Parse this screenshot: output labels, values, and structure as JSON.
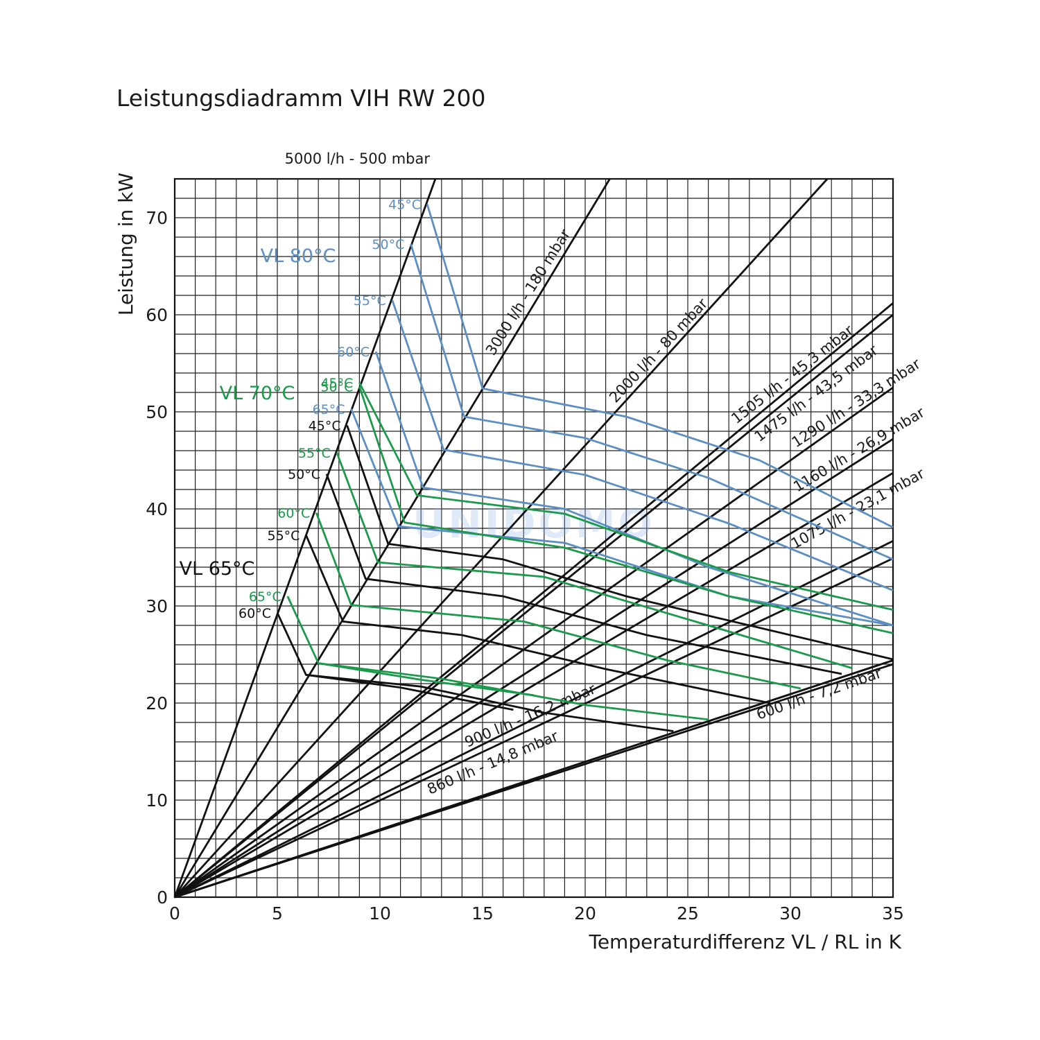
{
  "chart_data": {
    "type": "line",
    "title": "Leistungsdiadramm VIH RW 200",
    "xlabel": "Temperaturdifferenz VL / RL in K",
    "ylabel": "Leistung in kW",
    "xlim": [
      0,
      35
    ],
    "ylim": [
      0,
      74
    ],
    "x_ticks": [
      "0",
      "5",
      "10",
      "15",
      "20",
      "25",
      "30",
      "35"
    ],
    "y_ticks": [
      "0",
      "10",
      "20",
      "30",
      "40",
      "50",
      "60",
      "70"
    ],
    "grid": true,
    "watermark": "UNIDOMO",
    "colors": {
      "vl80": "#5b8ec2",
      "vl70": "#1a9a4a",
      "vl65": "#111111",
      "flow": "#111111"
    },
    "flow_lines": [
      {
        "label": "5000 l/h - 500 mbar",
        "end": [
          12.7,
          74
        ]
      },
      {
        "label": "3000 l/h - 180 mbar",
        "end": [
          21.2,
          74
        ]
      },
      {
        "label": "2000 l/h - 80 mbar",
        "end": [
          31.8,
          74
        ]
      },
      {
        "label": "1505 l/h - 45,3 mbar",
        "end": [
          35,
          61.2
        ]
      },
      {
        "label": "1475 l/h - 43,5 mbar",
        "end": [
          35,
          60.0
        ]
      },
      {
        "label": "1290 l/h - 33,3 mbar",
        "end": [
          35,
          52.5
        ]
      },
      {
        "label": "1160 l/h - 26,9 mbar",
        "end": [
          35,
          47.2
        ]
      },
      {
        "label": "1075 l/h - 23,1 mbar",
        "end": [
          35,
          43.7
        ]
      },
      {
        "label": "",
        "end": [
          35,
          36.7
        ]
      },
      {
        "label": "",
        "end": [
          35,
          34.9
        ]
      },
      {
        "label": "900 l/h - 16,2 mbar",
        "end": [
          35,
          24.4
        ]
      },
      {
        "label": "860 l/h - 14,8 mbar",
        "end": [
          35,
          24.0
        ]
      },
      {
        "label": "600 l/h - 7,2 mbar",
        "end": [
          35,
          24.4
        ]
      }
    ],
    "groups": [
      {
        "name": "VL 80°C",
        "color_key": "vl80",
        "curves": [
          {
            "label": "45°C",
            "points": [
              [
                12.3,
                71.4
              ],
              [
                15.0,
                52.4
              ],
              [
                22.0,
                49.5
              ],
              [
                28.5,
                45.0
              ],
              [
                35.0,
                38.1
              ]
            ]
          },
          {
            "label": "50°C",
            "points": [
              [
                11.5,
                67.3
              ],
              [
                14.1,
                49.5
              ],
              [
                20.0,
                47.3
              ],
              [
                26.0,
                43.2
              ],
              [
                35.0,
                34.8
              ]
            ]
          },
          {
            "label": "55°C",
            "points": [
              [
                10.6,
                61.5
              ],
              [
                13.1,
                46.1
              ],
              [
                20.0,
                43.5
              ],
              [
                27.0,
                38.5
              ],
              [
                35.0,
                31.6
              ]
            ]
          },
          {
            "label": "60°C",
            "points": [
              [
                9.8,
                56.2
              ],
              [
                12.1,
                42.2
              ],
              [
                19.0,
                40.0
              ],
              [
                26.0,
                34.0
              ],
              [
                35.0,
                28.0
              ]
            ]
          },
          {
            "label": "65°C",
            "points": [
              [
                8.6,
                50.3
              ],
              [
                10.9,
                38.2
              ],
              [
                19.0,
                36.5
              ],
              [
                27.0,
                31.0
              ],
              [
                35.0,
                28.0
              ]
            ]
          }
        ]
      },
      {
        "name": "VL 70°C",
        "color_key": "vl70",
        "curves": [
          {
            "label": "45°C",
            "points": [
              [
                9.0,
                53.0
              ],
              [
                11.8,
                41.4
              ],
              [
                19.0,
                39.5
              ],
              [
                27.0,
                33.5
              ],
              [
                35.0,
                29.6
              ]
            ]
          },
          {
            "label": "50°C",
            "points": [
              [
                9.0,
                52.6
              ],
              [
                11.2,
                38.6
              ],
              [
                19.0,
                36.0
              ],
              [
                27.0,
                31.0
              ],
              [
                35.0,
                27.2
              ]
            ]
          },
          {
            "label": "55°C",
            "points": [
              [
                7.9,
                45.8
              ],
              [
                9.9,
                34.5
              ],
              [
                18.0,
                33.0
              ],
              [
                26.0,
                28.0
              ],
              [
                33.0,
                23.6
              ]
            ]
          },
          {
            "label": "60°C",
            "points": [
              [
                6.9,
                39.6
              ],
              [
                8.6,
                30.1
              ],
              [
                17.0,
                28.4
              ],
              [
                24.0,
                24.4
              ],
              [
                30.5,
                21.5
              ]
            ]
          },
          {
            "label": "65°C",
            "points": [
              [
                5.5,
                31.0
              ],
              [
                7.0,
                24.1
              ],
              [
                13.0,
                22.5
              ],
              [
                20.0,
                19.8
              ],
              [
                26.0,
                18.3
              ]
            ]
          },
          {
            "label": "",
            "points": [
              [
                7.0,
                24.1
              ],
              [
                12.0,
                22.4
              ],
              [
                17.5,
                20.8
              ]
            ]
          }
        ]
      },
      {
        "name": "VL 65°C",
        "color_key": "vl65",
        "curves": [
          {
            "label": "45°C",
            "points": [
              [
                8.4,
                48.6
              ],
              [
                10.4,
                36.4
              ],
              [
                16.0,
                34.8
              ],
              [
                22.0,
                31.0
              ],
              [
                35.0,
                24.5
              ]
            ]
          },
          {
            "label": "50°C",
            "points": [
              [
                7.4,
                43.6
              ],
              [
                9.3,
                32.8
              ],
              [
                16.0,
                31.0
              ],
              [
                23.0,
                27.0
              ],
              [
                32.5,
                23.0
              ]
            ]
          },
          {
            "label": "55°C",
            "points": [
              [
                6.4,
                37.3
              ],
              [
                8.2,
                28.4
              ],
              [
                14.0,
                27.0
              ],
              [
                21.0,
                23.5
              ],
              [
                29.0,
                20.0
              ]
            ]
          },
          {
            "label": "60°C",
            "points": [
              [
                5.0,
                29.3
              ],
              [
                6.4,
                22.9
              ],
              [
                12.0,
                21.7
              ],
              [
                18.0,
                19.0
              ],
              [
                24.3,
                17.1
              ]
            ]
          },
          {
            "label": "",
            "points": [
              [
                6.4,
                22.9
              ],
              [
                11.0,
                21.6
              ],
              [
                16.5,
                19.3
              ]
            ]
          }
        ]
      }
    ]
  }
}
